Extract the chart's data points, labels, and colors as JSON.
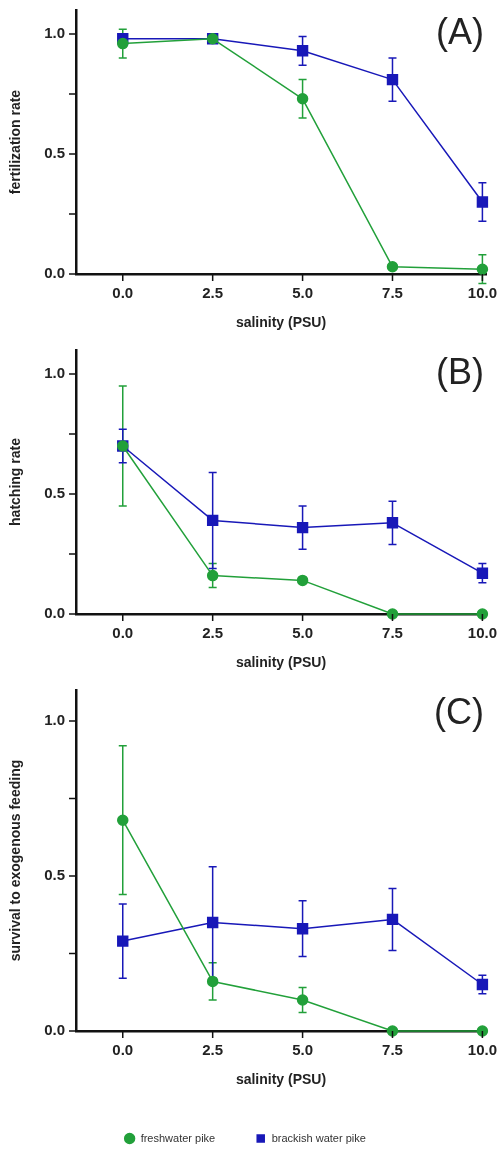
{
  "chart_data": [
    {
      "type": "line",
      "annotations": [
        "(A)"
      ],
      "xlabel": "salinity (PSU)",
      "ylabel": "fertilization rate",
      "x": [
        0,
        2.5,
        5,
        7.5,
        10
      ],
      "xlim": [
        -1.3,
        10.1
      ],
      "xticks": [
        {
          "value": 0,
          "label": "0.0"
        },
        {
          "value": 2.5,
          "label": "2.5"
        },
        {
          "value": 5,
          "label": "5.0"
        },
        {
          "value": 7.5,
          "label": "7.5"
        },
        {
          "value": 10,
          "label": "10.0"
        }
      ],
      "ylim": [
        0,
        1.1
      ],
      "yticks": [
        {
          "value": 0,
          "label": "0.0"
        },
        {
          "value": 0.25,
          "label": null
        },
        {
          "value": 0.5,
          "label": "0.5"
        },
        {
          "value": 0.75,
          "label": null
        },
        {
          "value": 1,
          "label": "1.0"
        }
      ],
      "grid": false,
      "legend": false,
      "line_style": "solid",
      "series": [
        {
          "color": "#22a03a",
          "marker": "circle",
          "values": [
            0.96,
            0.98,
            0.73,
            0.03,
            0.02
          ],
          "errors": [
            0.06,
            null,
            0.08,
            null,
            0.06
          ]
        },
        {
          "color": "#1818b8",
          "marker": "square",
          "values": [
            0.98,
            0.98,
            0.93,
            0.81,
            0.3
          ],
          "errors": [
            null,
            null,
            0.06,
            0.09,
            0.08
          ]
        }
      ]
    },
    {
      "type": "line",
      "annotations": [
        "(B)"
      ],
      "xlabel": "salinity (PSU)",
      "ylabel": "hatching rate",
      "x": [
        0,
        2.5,
        5,
        7.5,
        10
      ],
      "xlim": [
        -1.3,
        10.1
      ],
      "xticks": [
        {
          "value": 0,
          "label": "0.0"
        },
        {
          "value": 2.5,
          "label": "2.5"
        },
        {
          "value": 5,
          "label": "5.0"
        },
        {
          "value": 7.5,
          "label": "7.5"
        },
        {
          "value": 10,
          "label": "10.0"
        }
      ],
      "ylim": [
        0,
        1.1
      ],
      "yticks": [
        {
          "value": 0,
          "label": "0.0"
        },
        {
          "value": 0.25,
          "label": null
        },
        {
          "value": 0.5,
          "label": "0.5"
        },
        {
          "value": 0.75,
          "label": null
        },
        {
          "value": 1,
          "label": "1.0"
        }
      ],
      "grid": false,
      "legend": false,
      "line_style": "solid",
      "series": [
        {
          "color": "#22a03a",
          "marker": "circle",
          "values": [
            0.7,
            0.16,
            0.14,
            0,
            0
          ],
          "errors": [
            0.25,
            0.05,
            null,
            null,
            null
          ]
        },
        {
          "color": "#1818b8",
          "marker": "square",
          "values": [
            0.7,
            0.39,
            0.36,
            0.38,
            0.17
          ],
          "errors": [
            0.07,
            0.2,
            0.09,
            0.09,
            0.04
          ]
        }
      ]
    },
    {
      "type": "line",
      "annotations": [
        "(C)"
      ],
      "xlabel": "salinity (PSU)",
      "ylabel": "survival to exogenous feeding",
      "x": [
        0,
        2.5,
        5,
        7.5,
        10
      ],
      "xlim": [
        -1.3,
        10.1
      ],
      "xticks": [
        {
          "value": 0,
          "label": "0.0"
        },
        {
          "value": 2.5,
          "label": "2.5"
        },
        {
          "value": 5,
          "label": "5.0"
        },
        {
          "value": 7.5,
          "label": "7.5"
        },
        {
          "value": 10,
          "label": "10.0"
        }
      ],
      "ylim": [
        0,
        1.1
      ],
      "yticks": [
        {
          "value": 0,
          "label": "0.0"
        },
        {
          "value": 0.25,
          "label": null
        },
        {
          "value": 0.5,
          "label": "0.5"
        },
        {
          "value": 0.75,
          "label": null
        },
        {
          "value": 1,
          "label": "1.0"
        }
      ],
      "grid": false,
      "legend": "bottom",
      "line_style": "solid",
      "series": [
        {
          "name": "freshwater pike",
          "color": "#22a03a",
          "marker": "circle",
          "values": [
            0.68,
            0.16,
            0.1,
            0,
            0
          ],
          "errors": [
            0.24,
            0.06,
            0.04,
            null,
            null
          ]
        },
        {
          "name": "brackish water pike",
          "color": "#1818b8",
          "marker": "square",
          "values": [
            0.29,
            0.35,
            0.33,
            0.36,
            0.15
          ],
          "errors": [
            0.12,
            0.18,
            0.09,
            0.1,
            0.03
          ]
        }
      ]
    }
  ]
}
